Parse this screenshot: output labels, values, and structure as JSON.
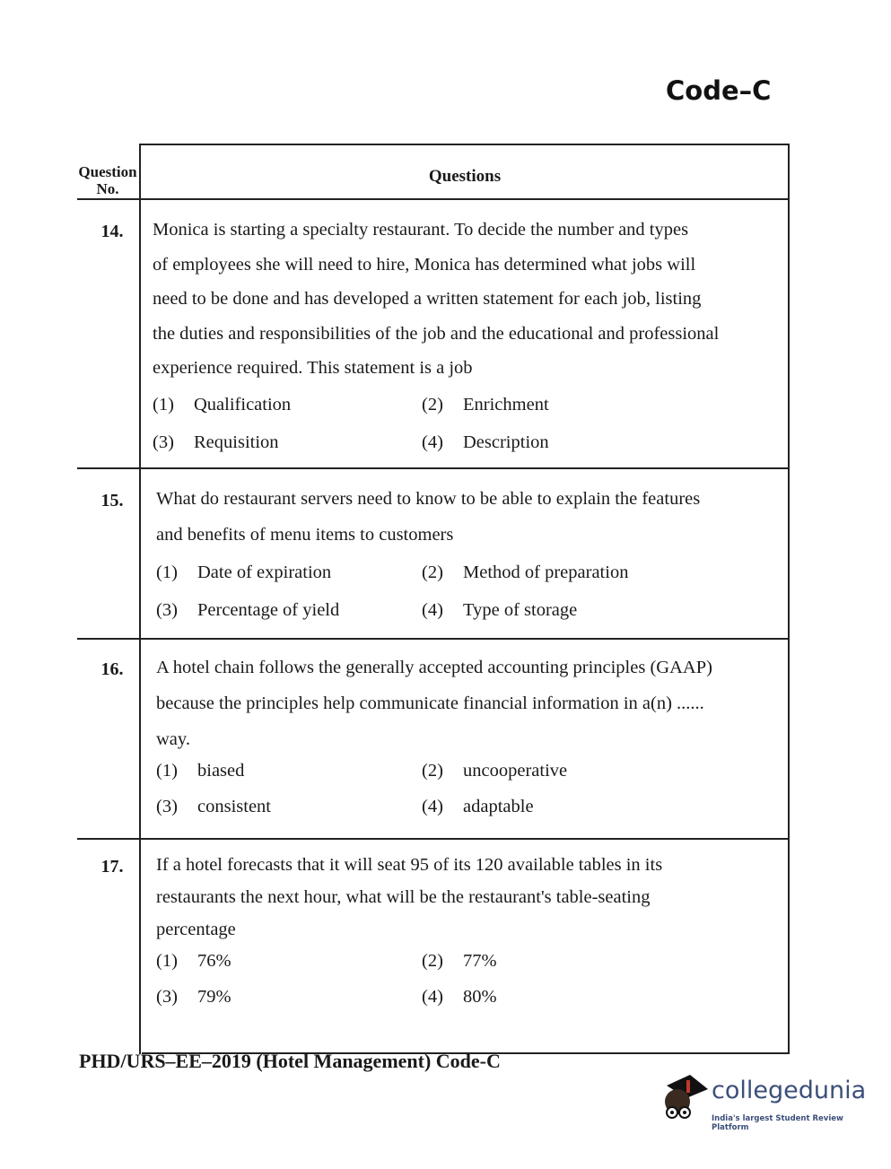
{
  "header": {
    "code": "Code–C"
  },
  "table": {
    "col_qno": "Question No.",
    "col_questions": "Questions"
  },
  "questions": [
    {
      "no": "14.",
      "lines": [
        "Monica is starting a specialty restaurant. To decide the number and types",
        "of employees she will need to hire, Monica has determined what jobs will",
        "need to be done and has developed a written statement for each job, listing",
        "the duties and responsibilities of the job and the educational and professional",
        "experience required. This statement is a job"
      ],
      "options": [
        "(1)|Qualification",
        "(2)|Enrichment",
        "(3)|Requisition",
        "(4)|Description"
      ]
    },
    {
      "no": "15.",
      "lines": [
        "What do restaurant servers need to know to be able to explain the features",
        "and benefits of menu items to customers"
      ],
      "options": [
        "(1)|Date of expiration",
        "(2)|Method of preparation",
        "(3)|Percentage of yield",
        "(4)|Type of storage"
      ]
    },
    {
      "no": "16.",
      "lines": [
        "A hotel chain follows the generally accepted accounting principles (GAAP)",
        "because the principles help communicate financial information in a(n) ......",
        "way."
      ],
      "options": [
        "(1)|biased",
        "(2)|uncooperative",
        "(3)|consistent",
        "(4)|adaptable"
      ]
    },
    {
      "no": "17.",
      "lines": [
        "If a hotel forecasts that it will seat 95 of its 120 available tables in its",
        "restaurants the next hour, what will be the restaurant's table-seating",
        "percentage"
      ],
      "options": [
        "(1)|76%",
        "(2)|77%",
        "(3)|79%",
        "(4)|80%"
      ]
    }
  ],
  "footer": {
    "text": "PHD/URS–EE–2019 (Hotel Management) Code-C"
  },
  "logo": {
    "name": "collegedunia",
    "tagline": "India's largest Student Review Platform"
  }
}
